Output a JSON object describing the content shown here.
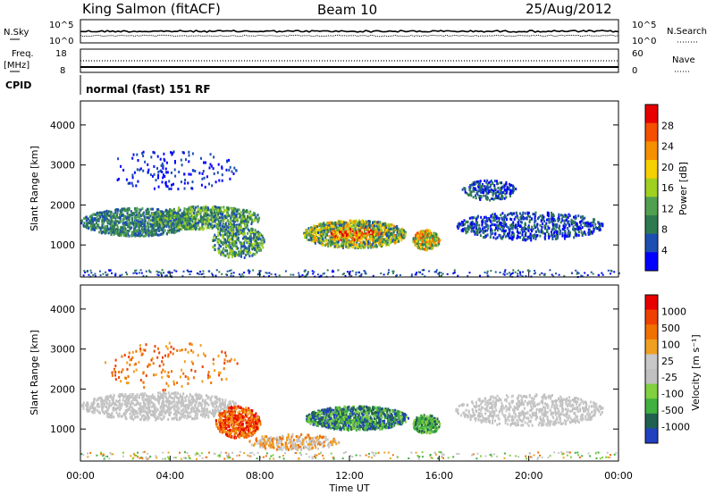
{
  "header": {
    "station": "King Salmon (fitACF)",
    "beam": "Beam 10",
    "date": "25/Aug/2012"
  },
  "top_panel": {
    "left_label": "N.Sky",
    "right_label": "N.Search",
    "left_ticks": [
      "10^5",
      "10^0"
    ],
    "right_ticks": [
      "10^5",
      "10^0"
    ]
  },
  "freq_panel": {
    "left_label_1": "Freq.",
    "left_label_2": "[MHz]",
    "right_label": "Nave",
    "left_ticks": [
      "18",
      "8"
    ],
    "right_ticks": [
      "60",
      "0"
    ]
  },
  "cpid": {
    "label": "CPID",
    "value": "normal (fast) 151 RF"
  },
  "colors": {
    "power": [
      "#0000ff",
      "#1c4fb0",
      "#2e7a50",
      "#50a050",
      "#a0d020",
      "#f5d000",
      "#f59000",
      "#f55000",
      "#e80000"
    ],
    "velocity": [
      "#2040c0",
      "#206050",
      "#40b040",
      "#80d040",
      "#c0c0c0",
      "#c8c8c8",
      "#f0a020",
      "#f07000",
      "#f04000",
      "#e80000"
    ]
  },
  "chart_data": [
    {
      "type": "heatmap",
      "title": "",
      "xlabel": "Time UT",
      "ylabel": "Slant Range [km]",
      "x_ticks": [
        "00:00",
        "04:00",
        "08:00",
        "12:00",
        "16:00",
        "20:00",
        "00:00"
      ],
      "y_ticks": [
        1000,
        2000,
        3000,
        4000
      ],
      "ylim": [
        200,
        4600
      ],
      "colorbar": {
        "label": "Power [dB]",
        "ticks": [
          4,
          8,
          12,
          16,
          20,
          24,
          28
        ]
      },
      "scatter_regions": [
        {
          "t_start": 0.0,
          "t_end": 9.5,
          "range_km": 1700,
          "level": 2
        },
        {
          "t_start": 10.0,
          "t_end": 14.5,
          "range_km": 1250,
          "level": 6
        },
        {
          "t_start": 15.0,
          "t_end": 16.0,
          "range_km": 1150,
          "level": 5
        },
        {
          "t_start": 17.0,
          "t_end": 24.0,
          "range_km": 1600,
          "level": 1
        }
      ]
    },
    {
      "type": "heatmap",
      "title": "",
      "xlabel": "Time UT",
      "ylabel": "Slant Range [km]",
      "x_ticks": [
        "00:00",
        "04:00",
        "08:00",
        "12:00",
        "16:00",
        "20:00",
        "00:00"
      ],
      "y_ticks": [
        1000,
        2000,
        3000,
        4000
      ],
      "ylim": [
        200,
        4600
      ],
      "colorbar": {
        "label": "Velocity [m s⁻¹]",
        "ticks": [
          1000,
          500,
          100,
          25,
          -25,
          -100,
          -500,
          -1000
        ]
      }
    }
  ]
}
